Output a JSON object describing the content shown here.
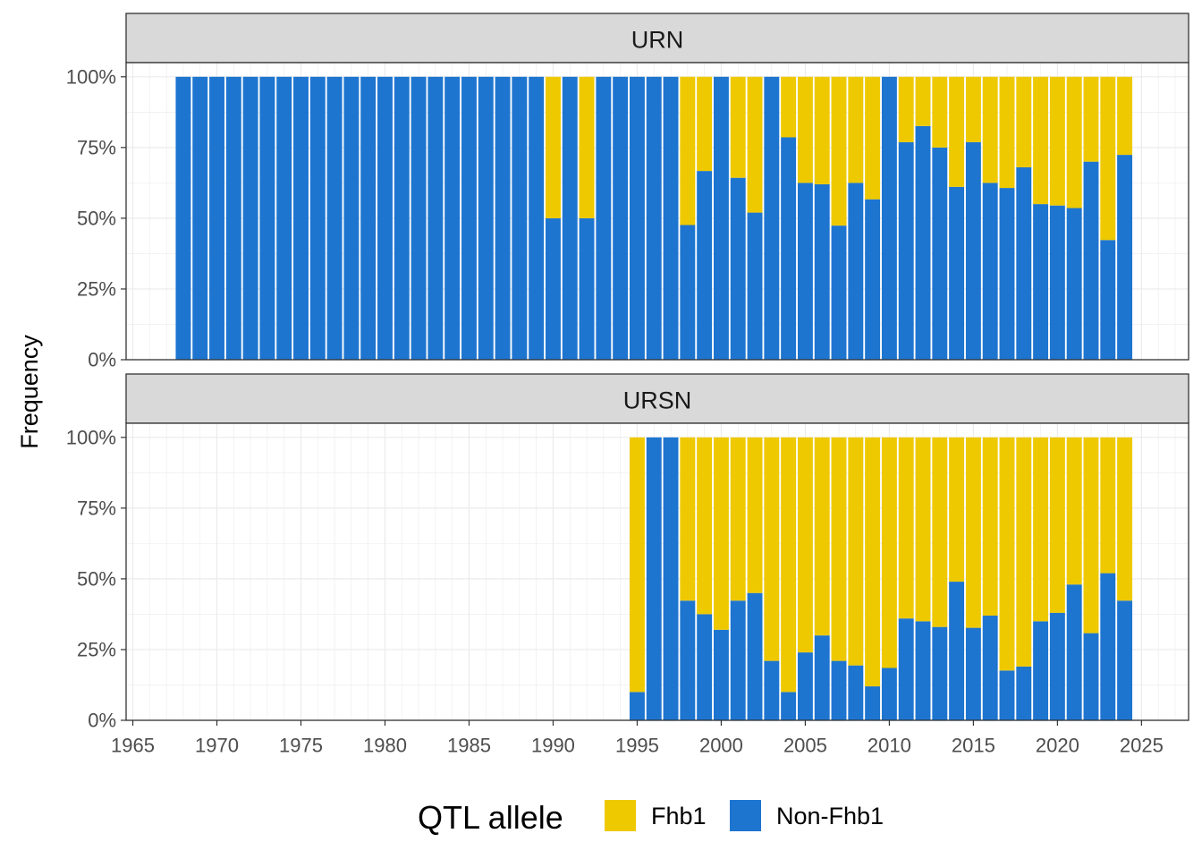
{
  "chart_data": {
    "type": "bar",
    "stacked": true,
    "ylabel": "Frequency",
    "xlabel": "",
    "y_ticks": [
      "0%",
      "25%",
      "50%",
      "75%",
      "100%"
    ],
    "x_ticks": [
      "1965",
      "1970",
      "1975",
      "1980",
      "1985",
      "1990",
      "1995",
      "2000",
      "2005",
      "2010",
      "2015",
      "2020",
      "2025"
    ],
    "xlim": [
      1964.6,
      2027.8
    ],
    "ylim": [
      0,
      1.05
    ],
    "legend": {
      "title": "QTL allele",
      "position": "bottom",
      "entries": [
        {
          "name": "Fhb1",
          "color": "#EEC900"
        },
        {
          "name": "Non-Fhb1",
          "color": "#1E75D0"
        }
      ]
    },
    "series_colors": {
      "fhb1": "#EEC900",
      "non_fhb1": "#1E75D0"
    },
    "panels": [
      {
        "strip": "URN",
        "years": [
          1968,
          1969,
          1970,
          1971,
          1972,
          1973,
          1974,
          1975,
          1976,
          1977,
          1978,
          1979,
          1980,
          1981,
          1982,
          1983,
          1984,
          1985,
          1986,
          1987,
          1988,
          1989,
          1990,
          1991,
          1992,
          1993,
          1994,
          1995,
          1996,
          1997,
          1998,
          1999,
          2000,
          2001,
          2002,
          2003,
          2004,
          2005,
          2006,
          2007,
          2008,
          2009,
          2010,
          2011,
          2012,
          2013,
          2014,
          2015,
          2016,
          2017,
          2018,
          2019,
          2020,
          2021,
          2022,
          2023,
          2024
        ],
        "non_fhb1": [
          1,
          1,
          1,
          1,
          1,
          1,
          1,
          1,
          1,
          1,
          1,
          1,
          1,
          1,
          1,
          1,
          1,
          1,
          1,
          1,
          1,
          1,
          0.5,
          1,
          0.5,
          1,
          1,
          1,
          1,
          1,
          0.476,
          0.667,
          1,
          0.643,
          0.52,
          1,
          0.786,
          0.625,
          0.62,
          0.474,
          0.625,
          0.567,
          1,
          0.769,
          0.826,
          0.75,
          0.611,
          0.769,
          0.625,
          0.607,
          0.68,
          0.55,
          0.545,
          0.536,
          0.7,
          0.423,
          0.724
        ]
      },
      {
        "strip": "URSN",
        "years": [
          1995,
          1996,
          1997,
          1998,
          1999,
          2000,
          2001,
          2002,
          2003,
          2004,
          2005,
          2006,
          2007,
          2008,
          2009,
          2010,
          2011,
          2012,
          2013,
          2014,
          2015,
          2016,
          2017,
          2018,
          2019,
          2020,
          2021,
          2022,
          2023,
          2024
        ],
        "non_fhb1": [
          0.1,
          1,
          1,
          0.423,
          0.375,
          0.32,
          0.423,
          0.45,
          0.21,
          0.1,
          0.24,
          0.3,
          0.21,
          0.194,
          0.12,
          0.185,
          0.36,
          0.35,
          0.33,
          0.49,
          0.327,
          0.37,
          0.176,
          0.19,
          0.35,
          0.38,
          0.48,
          0.308,
          0.52,
          0.423
        ]
      }
    ]
  }
}
